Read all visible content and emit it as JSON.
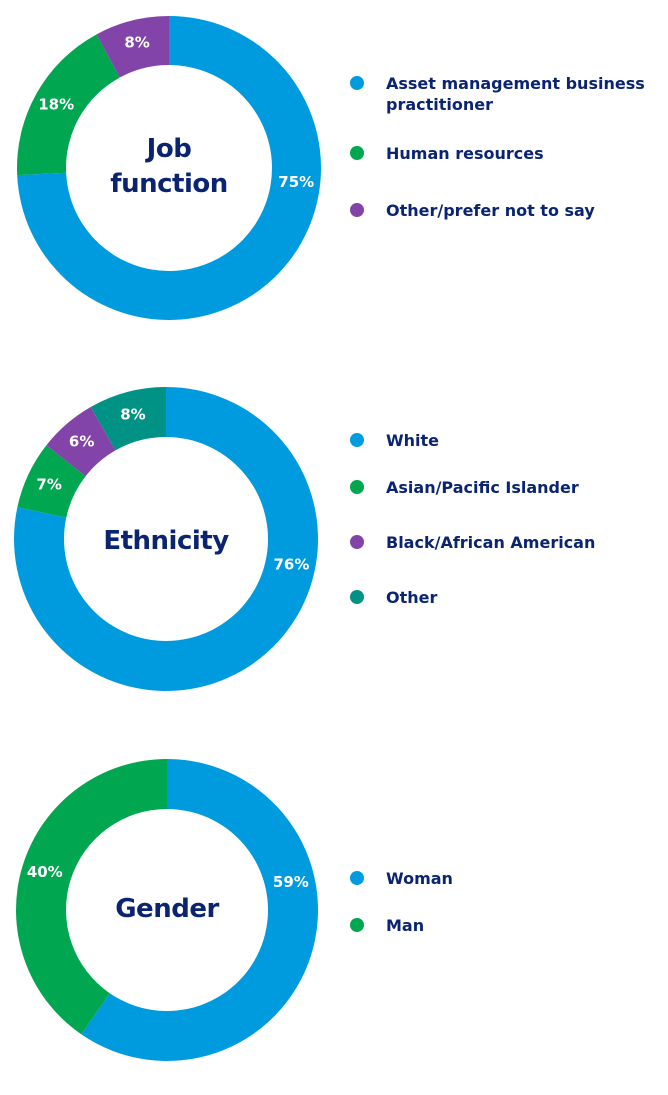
{
  "chart_data": [
    {
      "type": "pie",
      "title": "Job function",
      "donut": true,
      "categories": [
        "Asset management business practitioner",
        "Human resources",
        "Other/prefer not to say"
      ],
      "values": [
        75,
        18,
        8
      ],
      "labels": [
        "75%",
        "18%",
        "8%"
      ],
      "colors": [
        "#009bde",
        "#00a650",
        "#8244a8"
      ],
      "legend_placement": "right"
    },
    {
      "type": "pie",
      "title": "Ethnicity",
      "donut": true,
      "categories": [
        "White",
        "Asian/Pacific Islander",
        "Black/African American",
        "Other"
      ],
      "values": [
        76,
        7,
        6,
        8
      ],
      "labels": [
        "76%",
        "7%",
        "6%",
        "8%"
      ],
      "colors": [
        "#009bde",
        "#00a650",
        "#8244a8",
        "#009385"
      ],
      "legend_placement": "right"
    },
    {
      "type": "pie",
      "title": "Gender",
      "donut": true,
      "categories": [
        "Woman",
        "Man"
      ],
      "values": [
        59,
        40
      ],
      "labels": [
        "59%",
        "40%"
      ],
      "colors": [
        "#009bde",
        "#00a650"
      ],
      "legend_placement": "right"
    }
  ]
}
